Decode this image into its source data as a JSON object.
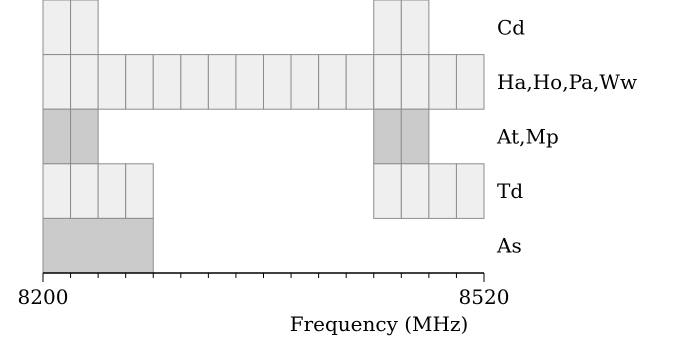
{
  "chart_data": {
    "type": "band-occupancy",
    "xlabel": "Frequency (MHz)",
    "xlim": [
      8200,
      8520
    ],
    "x_tick_labels": [
      {
        "value": 8200,
        "label": "8200"
      },
      {
        "value": 8520,
        "label": "8520"
      }
    ],
    "grid_step_mhz": 20,
    "colors": {
      "light_cell": "#efefef",
      "dark_cell": "#cbcbcb",
      "cell_border": "#8c8c8c"
    },
    "rows": [
      {
        "label": "Cd",
        "blocks": [
          {
            "start": 8200,
            "end": 8240,
            "shade": "light"
          },
          {
            "start": 8440,
            "end": 8480,
            "shade": "light"
          }
        ]
      },
      {
        "label": "Ha,Ho,Pa,Ww",
        "blocks": [
          {
            "start": 8200,
            "end": 8520,
            "shade": "light"
          }
        ]
      },
      {
        "label": "At,Mp",
        "blocks": [
          {
            "start": 8200,
            "end": 8240,
            "shade": "dark"
          },
          {
            "start": 8440,
            "end": 8480,
            "shade": "dark"
          }
        ]
      },
      {
        "label": "Td",
        "blocks": [
          {
            "start": 8200,
            "end": 8280,
            "shade": "light"
          },
          {
            "start": 8440,
            "end": 8520,
            "shade": "light"
          }
        ]
      },
      {
        "label": "As",
        "blocks": [
          {
            "start": 8200,
            "end": 8280,
            "shade": "dark",
            "undivided": true
          }
        ]
      }
    ]
  }
}
